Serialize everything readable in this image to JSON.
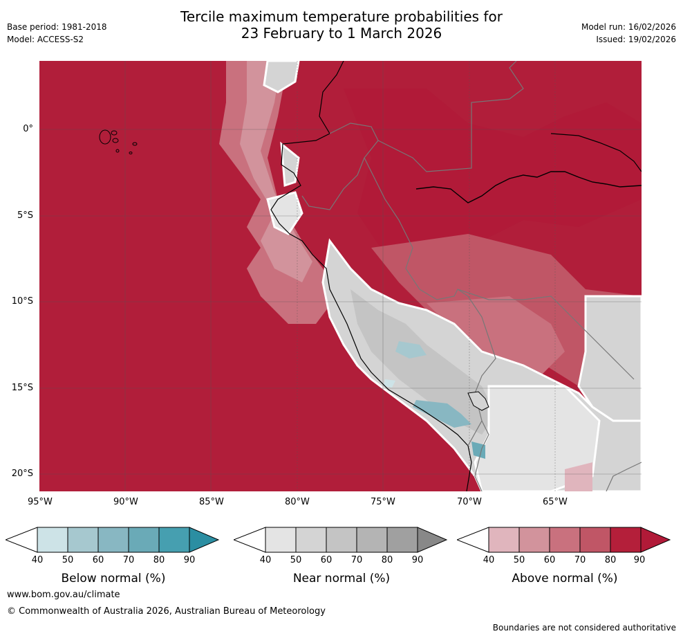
{
  "title": {
    "line1": "Tercile maximum temperature probabilities for",
    "line2": "23 February to 1 March 2026"
  },
  "header_left": {
    "base_period": "Base period: 1981-2018",
    "model": "Model: ACCESS-S2"
  },
  "header_right": {
    "model_run": "Model run: 16/02/2026",
    "issued": "Issued: 19/02/2026"
  },
  "map": {
    "lon_ticks": [
      "95°W",
      "90°W",
      "85°W",
      "80°W",
      "75°W",
      "70°W",
      "65°W"
    ],
    "lat_ticks": [
      "0°",
      "5°S",
      "10°S",
      "15°S",
      "20°S"
    ]
  },
  "colorbars": [
    {
      "title": "Below normal (%)",
      "ticks": [
        "40",
        "50",
        "60",
        "70",
        "80",
        "90"
      ],
      "colors": [
        "#ffffff",
        "#cde3e7",
        "#a6c8cf",
        "#88b7c2",
        "#6aaab7",
        "#469fb0",
        "#2b8ea2"
      ]
    },
    {
      "title": "Near normal (%)",
      "ticks": [
        "40",
        "50",
        "60",
        "70",
        "80",
        "90"
      ],
      "colors": [
        "#ffffff",
        "#e4e4e4",
        "#d4d4d4",
        "#c4c4c4",
        "#b4b4b4",
        "#a0a0a0",
        "#888888"
      ]
    },
    {
      "title": "Above normal (%)",
      "ticks": [
        "40",
        "50",
        "60",
        "70",
        "80",
        "90"
      ],
      "colors": [
        "#ffffff",
        "#e0b5bd",
        "#d2939c",
        "#c9717e",
        "#c05666",
        "#b41f3a",
        "#b11a38"
      ]
    }
  ],
  "footer": {
    "url": "www.bom.gov.au/climate",
    "copyright": "© Commonwealth of Australia 2026, Australian Bureau of Meteorology",
    "disclaimer": "Boundaries are not considered authoritative"
  }
}
